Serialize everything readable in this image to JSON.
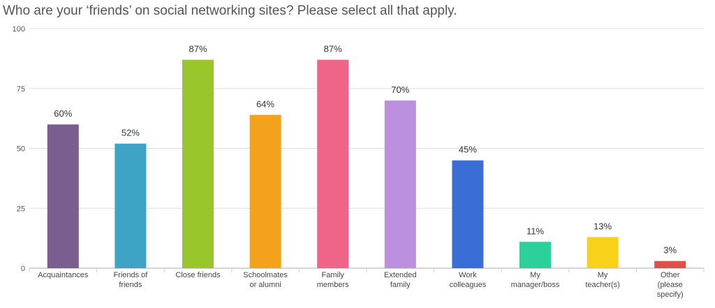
{
  "chart_data": {
    "type": "bar",
    "title": "Who are your ‘friends’ on social networking sites? Please select all that apply.",
    "xlabel": "",
    "ylabel": "",
    "ylim": [
      0,
      100
    ],
    "yticks": [
      0,
      25,
      50,
      75,
      100
    ],
    "grid": true,
    "legend": "none",
    "categories": [
      [
        "Acquaintances"
      ],
      [
        "Friends of",
        "friends"
      ],
      [
        "Close friends"
      ],
      [
        "Schoolmates",
        "or alumni"
      ],
      [
        "Family",
        "members"
      ],
      [
        "Extended",
        "family"
      ],
      [
        "Work",
        "colleagues"
      ],
      [
        "My",
        "manager/boss"
      ],
      [
        "My",
        "teacher(s)"
      ],
      [
        "Other",
        "(please",
        "specify)"
      ]
    ],
    "values": [
      60,
      52,
      87,
      64,
      87,
      70,
      45,
      11,
      13,
      3
    ],
    "data_labels": [
      "60%",
      "52%",
      "87%",
      "64%",
      "87%",
      "70%",
      "45%",
      "11%",
      "13%",
      "3%"
    ],
    "colors": [
      "#7b5e90",
      "#3fa3c6",
      "#99c72b",
      "#f4a21d",
      "#ef6589",
      "#bb91df",
      "#3a6ed6",
      "#2dcf9b",
      "#f9d11a",
      "#d9534a"
    ]
  }
}
